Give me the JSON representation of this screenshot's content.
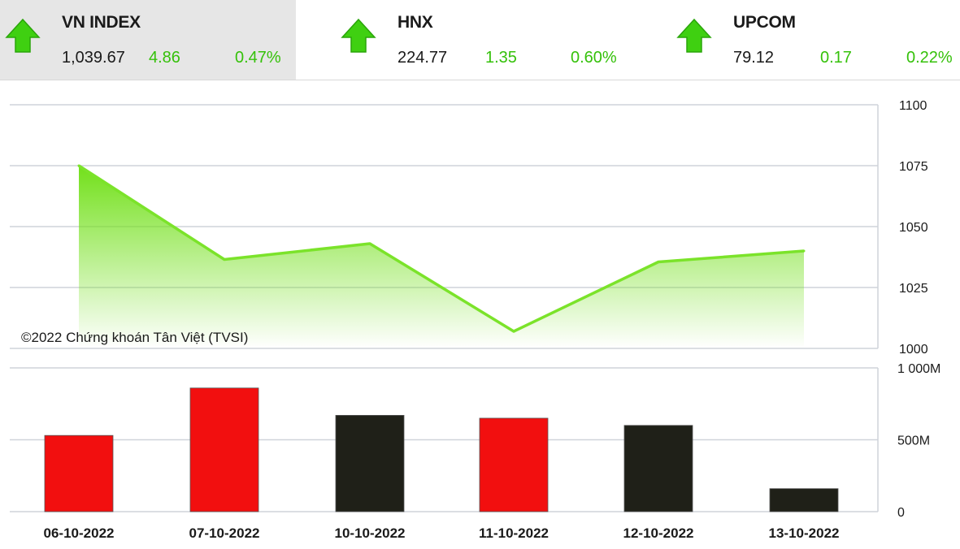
{
  "tickers": [
    {
      "name": "VN INDEX",
      "price": "1,039.67",
      "change": "4.86",
      "percent": "0.47%",
      "direction": "up"
    },
    {
      "name": "HNX",
      "price": "224.77",
      "change": "1.35",
      "percent": "0.60%",
      "direction": "up"
    },
    {
      "name": "UPCOM",
      "price": "79.12",
      "change": "0.17",
      "percent": "0.22%",
      "direction": "up"
    }
  ],
  "colors": {
    "up_green": "#35c10a",
    "line_green": "#7be32a",
    "bar_red": "#f20f0f",
    "bar_dark": "#1f2018",
    "grid": "#cfd3da"
  },
  "copyright": "©2022 Chứng khoán Tân Việt (TVSI)",
  "chart_data": [
    {
      "type": "area",
      "categories": [
        "06-10-2022",
        "07-10-2022",
        "10-10-2022",
        "11-10-2022",
        "12-10-2022",
        "13-10-2022"
      ],
      "values": [
        1075,
        1036.5,
        1043,
        1007,
        1035.5,
        1040
      ],
      "ylim": [
        1000,
        1100
      ],
      "yticks": [
        1100,
        1075,
        1050,
        1025,
        1000
      ],
      "ytick_labels": [
        "1100",
        "1075",
        "1050",
        "1025",
        "1000"
      ],
      "grid": true
    },
    {
      "type": "bar",
      "categories": [
        "06-10-2022",
        "07-10-2022",
        "10-10-2022",
        "11-10-2022",
        "12-10-2022",
        "13-10-2022"
      ],
      "values": [
        530,
        860,
        670,
        650,
        600,
        160
      ],
      "value_unit": "M",
      "bar_colors": [
        "red",
        "red",
        "dark",
        "red",
        "dark",
        "dark"
      ],
      "ylim": [
        0,
        1000
      ],
      "yticks": [
        1000,
        500,
        0
      ],
      "ytick_labels": [
        "1 000M",
        "500M",
        "0"
      ],
      "grid": true
    }
  ]
}
